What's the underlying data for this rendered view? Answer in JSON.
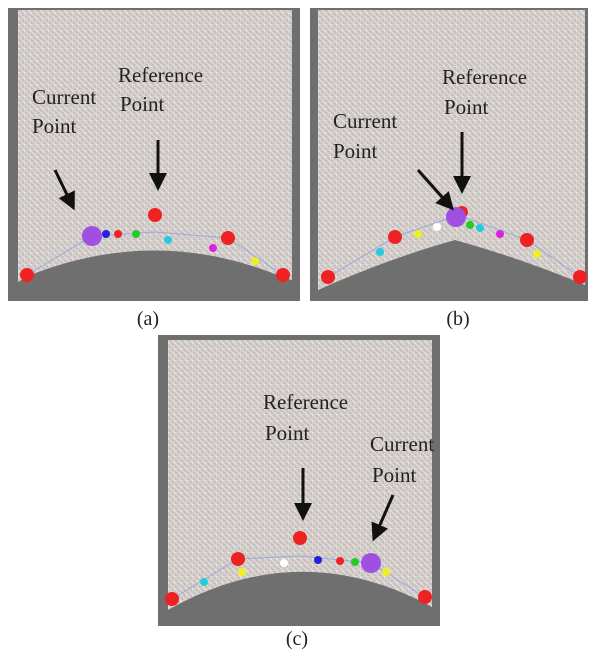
{
  "panels": [
    {
      "caption": "(a)",
      "labels": [
        {
          "lines": [
            "Current",
            "Point"
          ]
        },
        {
          "lines": [
            "Reference",
            "Point"
          ]
        }
      ]
    },
    {
      "caption": "(b)",
      "labels": [
        {
          "lines": [
            "Current",
            "Point"
          ]
        },
        {
          "lines": [
            "Reference",
            "Point"
          ]
        }
      ]
    },
    {
      "caption": "(c)",
      "labels": [
        {
          "lines": [
            "Reference",
            "Point"
          ]
        },
        {
          "lines": [
            "Current",
            "Point"
          ]
        }
      ]
    }
  ]
}
